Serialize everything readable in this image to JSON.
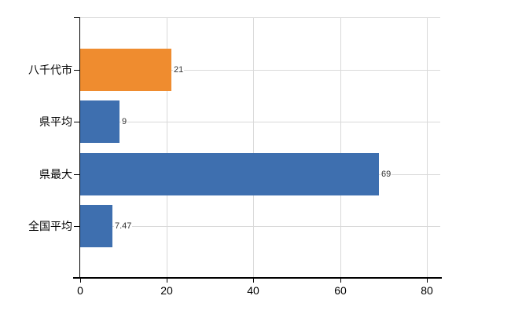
{
  "chart_data": {
    "type": "bar",
    "orientation": "horizontal",
    "title": "",
    "categories": [
      "八千代市",
      "県平均",
      "県最大",
      "全国平均"
    ],
    "values": [
      21,
      9,
      69,
      7.47
    ],
    "data_labels": [
      "21",
      "9",
      "69",
      "7.47"
    ],
    "bar_colors": [
      "#EF8C2F",
      "#3E6FAF",
      "#3E6FAF",
      "#3E6FAF"
    ],
    "x_ticks": [
      0,
      20,
      40,
      60,
      80
    ],
    "x_tick_labels": [
      "0",
      "20",
      "40",
      "60",
      "80"
    ],
    "xlim": [
      0,
      83.1
    ],
    "grid": true,
    "legend": false,
    "colors": {
      "grid": "#D9D9D9",
      "axis": "#000000",
      "value_label": "#333333",
      "tick_label": "#000000",
      "background": "#FFFFFF"
    }
  }
}
